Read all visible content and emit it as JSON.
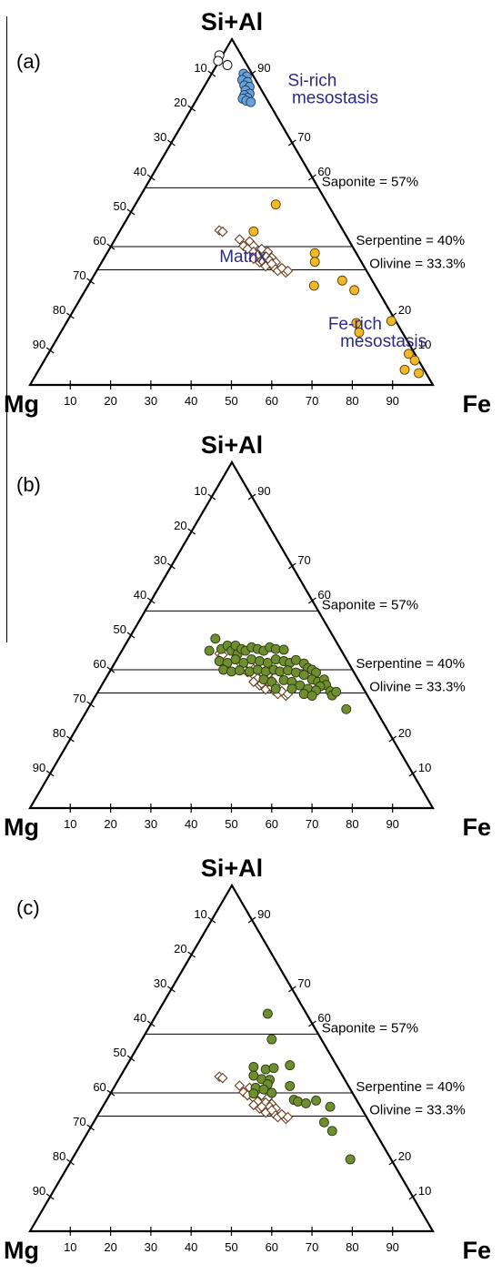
{
  "chart_data": [
    {
      "type": "scatter",
      "panel_label": "(a)",
      "vertex_labels": {
        "top": "Si+Al",
        "left": "Mg",
        "right": "Fe"
      },
      "bottom_ticks": [
        "10",
        "20",
        "30",
        "40",
        "50",
        "60",
        "70",
        "80",
        "90"
      ],
      "left_ticks": [
        "10",
        "20",
        "30",
        "40",
        "50",
        "60",
        "70",
        "80",
        "90"
      ],
      "right_ticks": [
        {
          "f": 0.1,
          "label": "90"
        },
        {
          "f": 0.3,
          "label": "70"
        },
        {
          "f": 0.4,
          "label": "60"
        },
        {
          "f": 0.8,
          "label": "20"
        },
        {
          "f": 0.9,
          "label": "10"
        }
      ],
      "reference_lines": [
        {
          "label": "Saponite = 57%",
          "si_al": 0.57
        },
        {
          "label": "Serpentine = 40%",
          "si_al": 0.4
        },
        {
          "label": "Olivine = 33.3%",
          "si_al": 0.333
        }
      ],
      "annotations": [
        {
          "text": "Si-rich",
          "color": "#2b2a8c",
          "h": 0.64,
          "v": 0.865
        },
        {
          "text": "mesostasis",
          "color": "#2b2a8c",
          "h": 0.65,
          "v": 0.815
        },
        {
          "text": "Matrix",
          "color": "#2b2a8c",
          "h": 0.47,
          "v": 0.355
        },
        {
          "text": "Fe-rich",
          "color": "#2b2a8c",
          "h": 0.74,
          "v": 0.16
        },
        {
          "text": "mesostasis",
          "color": "#2b2a8c",
          "h": 0.77,
          "v": 0.11
        }
      ],
      "series": [
        {
          "marker": "circle",
          "fill": "#ffffff",
          "stroke": "#000000",
          "points": [
            [
              0.47,
              0.953
            ],
            [
              0.467,
              0.937
            ],
            [
              0.49,
              0.925
            ]
          ]
        },
        {
          "marker": "circle",
          "fill": "#6aa2d8",
          "stroke": "#1f3e66",
          "points": [
            [
              0.53,
              0.9
            ],
            [
              0.538,
              0.892
            ],
            [
              0.527,
              0.882
            ],
            [
              0.54,
              0.876
            ],
            [
              0.532,
              0.866
            ],
            [
              0.545,
              0.862
            ],
            [
              0.535,
              0.852
            ],
            [
              0.545,
              0.842
            ],
            [
              0.532,
              0.838
            ],
            [
              0.54,
              0.83
            ],
            [
              0.528,
              0.828
            ],
            [
              0.537,
              0.822
            ],
            [
              0.548,
              0.818
            ]
          ]
        },
        {
          "marker": "circle",
          "fill": "#f2b827",
          "stroke": "#5a4008",
          "points": [
            [
              0.61,
              0.522
            ],
            [
              0.555,
              0.444
            ],
            [
              0.707,
              0.381
            ],
            [
              0.707,
              0.356
            ],
            [
              0.705,
              0.287
            ],
            [
              0.775,
              0.302
            ],
            [
              0.805,
              0.274
            ],
            [
              0.81,
              0.179
            ],
            [
              0.817,
              0.152
            ],
            [
              0.897,
              0.185
            ],
            [
              0.94,
              0.09
            ],
            [
              0.955,
              0.071
            ],
            [
              0.93,
              0.044
            ],
            [
              0.965,
              0.034
            ]
          ]
        },
        {
          "marker": "diamond",
          "fill": "#ffffff",
          "stroke": "#6b3d1e",
          "points": [
            [
              0.47,
              0.447
            ],
            [
              0.478,
              0.443
            ],
            [
              0.52,
              0.421
            ],
            [
              0.545,
              0.415
            ],
            [
              0.555,
              0.402
            ],
            [
              0.53,
              0.402
            ],
            [
              0.54,
              0.393
            ],
            [
              0.575,
              0.393
            ],
            [
              0.555,
              0.385
            ],
            [
              0.59,
              0.385
            ],
            [
              0.565,
              0.375
            ],
            [
              0.585,
              0.372
            ],
            [
              0.6,
              0.368
            ],
            [
              0.595,
              0.36
            ],
            [
              0.61,
              0.355
            ],
            [
              0.57,
              0.355
            ],
            [
              0.585,
              0.343
            ],
            [
              0.605,
              0.34
            ],
            [
              0.615,
              0.33
            ],
            [
              0.635,
              0.325
            ],
            [
              0.555,
              0.365
            ],
            [
              0.6,
              0.35
            ],
            [
              0.625,
              0.338
            ],
            [
              0.64,
              0.33
            ],
            [
              0.575,
              0.36
            ]
          ]
        }
      ]
    },
    {
      "type": "scatter",
      "panel_label": "(b)",
      "vertex_labels": {
        "top": "Si+Al",
        "left": "Mg",
        "right": "Fe"
      },
      "bottom_ticks": [
        "10",
        "20",
        "30",
        "40",
        "50",
        "60",
        "70",
        "80",
        "90"
      ],
      "left_ticks": [
        "10",
        "20",
        "30",
        "40",
        "50",
        "60",
        "70",
        "80",
        "90"
      ],
      "right_ticks": [
        {
          "f": 0.1,
          "label": "90"
        },
        {
          "f": 0.3,
          "label": "70"
        },
        {
          "f": 0.4,
          "label": "60"
        },
        {
          "f": 0.8,
          "label": "20"
        },
        {
          "f": 0.9,
          "label": "10"
        }
      ],
      "reference_lines": [
        {
          "label": "Saponite = 57%",
          "si_al": 0.57
        },
        {
          "label": "Serpentine = 40%",
          "si_al": 0.4
        },
        {
          "label": "Olivine = 33.3%",
          "si_al": 0.333
        }
      ],
      "annotations": [],
      "series": [
        {
          "marker": "diamond",
          "fill": "#ffffff",
          "stroke": "#6b3d1e",
          "points": [
            [
              0.47,
              0.447
            ],
            [
              0.478,
              0.443
            ],
            [
              0.52,
              0.421
            ],
            [
              0.545,
              0.415
            ],
            [
              0.555,
              0.402
            ],
            [
              0.53,
              0.402
            ],
            [
              0.54,
              0.393
            ],
            [
              0.575,
              0.393
            ],
            [
              0.555,
              0.385
            ],
            [
              0.59,
              0.385
            ],
            [
              0.565,
              0.375
            ],
            [
              0.585,
              0.372
            ],
            [
              0.6,
              0.368
            ],
            [
              0.595,
              0.36
            ],
            [
              0.61,
              0.355
            ],
            [
              0.57,
              0.355
            ],
            [
              0.585,
              0.343
            ],
            [
              0.605,
              0.34
            ],
            [
              0.615,
              0.33
            ],
            [
              0.635,
              0.325
            ],
            [
              0.555,
              0.365
            ],
            [
              0.6,
              0.35
            ],
            [
              0.625,
              0.338
            ],
            [
              0.64,
              0.33
            ],
            [
              0.575,
              0.36
            ]
          ]
        },
        {
          "marker": "circle",
          "fill": "#6e8e2f",
          "stroke": "#2c3a0e",
          "points": [
            [
              0.46,
              0.49
            ],
            [
              0.445,
              0.455
            ],
            [
              0.475,
              0.46
            ],
            [
              0.49,
              0.47
            ],
            [
              0.5,
              0.455
            ],
            [
              0.51,
              0.47
            ],
            [
              0.515,
              0.445
            ],
            [
              0.525,
              0.46
            ],
            [
              0.535,
              0.455
            ],
            [
              0.55,
              0.465
            ],
            [
              0.565,
              0.46
            ],
            [
              0.58,
              0.455
            ],
            [
              0.595,
              0.465
            ],
            [
              0.61,
              0.46
            ],
            [
              0.63,
              0.458
            ],
            [
              0.47,
              0.425
            ],
            [
              0.49,
              0.42
            ],
            [
              0.51,
              0.43
            ],
            [
              0.53,
              0.42
            ],
            [
              0.55,
              0.43
            ],
            [
              0.57,
              0.425
            ],
            [
              0.59,
              0.42
            ],
            [
              0.61,
              0.43
            ],
            [
              0.63,
              0.425
            ],
            [
              0.645,
              0.42
            ],
            [
              0.66,
              0.428
            ],
            [
              0.68,
              0.418
            ],
            [
              0.69,
              0.405
            ],
            [
              0.7,
              0.4
            ],
            [
              0.71,
              0.392
            ],
            [
              0.48,
              0.4
            ],
            [
              0.5,
              0.395
            ],
            [
              0.52,
              0.398
            ],
            [
              0.545,
              0.395
            ],
            [
              0.565,
              0.4
            ],
            [
              0.585,
              0.395
            ],
            [
              0.605,
              0.4
            ],
            [
              0.62,
              0.395
            ],
            [
              0.64,
              0.398
            ],
            [
              0.66,
              0.392
            ],
            [
              0.68,
              0.385
            ],
            [
              0.7,
              0.372
            ],
            [
              0.715,
              0.365
            ],
            [
              0.73,
              0.372
            ],
            [
              0.735,
              0.356
            ],
            [
              0.72,
              0.352
            ],
            [
              0.58,
              0.372
            ],
            [
              0.6,
              0.365
            ],
            [
              0.63,
              0.37
            ],
            [
              0.65,
              0.365
            ],
            [
              0.67,
              0.355
            ],
            [
              0.69,
              0.345
            ],
            [
              0.71,
              0.34
            ],
            [
              0.745,
              0.338
            ],
            [
              0.75,
              0.326
            ],
            [
              0.65,
              0.345
            ],
            [
              0.61,
              0.345
            ],
            [
              0.68,
              0.33
            ],
            [
              0.7,
              0.325
            ],
            [
              0.76,
              0.336
            ],
            [
              0.785,
              0.286
            ]
          ]
        }
      ]
    },
    {
      "type": "scatter",
      "panel_label": "(c)",
      "vertex_labels": {
        "top": "Si+Al",
        "left": "Mg",
        "right": "Fe"
      },
      "bottom_ticks": [
        "10",
        "20",
        "30",
        "40",
        "50",
        "60",
        "70",
        "80",
        "90"
      ],
      "left_ticks": [
        "10",
        "20",
        "30",
        "40",
        "50",
        "60",
        "70",
        "80",
        "90"
      ],
      "right_ticks": [
        {
          "f": 0.1,
          "label": "90"
        },
        {
          "f": 0.3,
          "label": "70"
        },
        {
          "f": 0.4,
          "label": "60"
        },
        {
          "f": 0.8,
          "label": "20"
        },
        {
          "f": 0.9,
          "label": "10"
        }
      ],
      "reference_lines": [
        {
          "label": "Saponite = 57%",
          "si_al": 0.57
        },
        {
          "label": "Serpentine = 40%",
          "si_al": 0.4
        },
        {
          "label": "Olivine = 33.3%",
          "si_al": 0.333
        }
      ],
      "annotations": [],
      "series": [
        {
          "marker": "diamond",
          "fill": "#ffffff",
          "stroke": "#6b3d1e",
          "points": [
            [
              0.47,
              0.447
            ],
            [
              0.478,
              0.443
            ],
            [
              0.52,
              0.421
            ],
            [
              0.545,
              0.415
            ],
            [
              0.555,
              0.402
            ],
            [
              0.53,
              0.402
            ],
            [
              0.54,
              0.393
            ],
            [
              0.575,
              0.393
            ],
            [
              0.555,
              0.385
            ],
            [
              0.59,
              0.385
            ],
            [
              0.565,
              0.375
            ],
            [
              0.585,
              0.372
            ],
            [
              0.6,
              0.368
            ],
            [
              0.595,
              0.36
            ],
            [
              0.61,
              0.355
            ],
            [
              0.57,
              0.355
            ],
            [
              0.585,
              0.343
            ],
            [
              0.605,
              0.34
            ],
            [
              0.615,
              0.33
            ],
            [
              0.635,
              0.325
            ],
            [
              0.555,
              0.365
            ],
            [
              0.6,
              0.35
            ],
            [
              0.625,
              0.338
            ],
            [
              0.64,
              0.33
            ],
            [
              0.575,
              0.36
            ]
          ]
        },
        {
          "marker": "circle",
          "fill": "#6e8e2f",
          "stroke": "#2c3a0e",
          "points": [
            [
              0.59,
              0.629
            ],
            [
              0.6,
              0.555
            ],
            [
              0.645,
              0.48
            ],
            [
              0.555,
              0.475
            ],
            [
              0.585,
              0.468
            ],
            [
              0.605,
              0.472
            ],
            [
              0.555,
              0.45
            ],
            [
              0.575,
              0.44
            ],
            [
              0.595,
              0.438
            ],
            [
              0.59,
              0.425
            ],
            [
              0.56,
              0.415
            ],
            [
              0.58,
              0.41
            ],
            [
              0.555,
              0.398
            ],
            [
              0.6,
              0.4
            ],
            [
              0.645,
              0.42
            ],
            [
              0.655,
              0.38
            ],
            [
              0.665,
              0.375
            ],
            [
              0.685,
              0.37
            ],
            [
              0.71,
              0.378
            ],
            [
              0.745,
              0.36
            ],
            [
              0.73,
              0.315
            ],
            [
              0.75,
              0.29
            ],
            [
              0.795,
              0.208
            ]
          ]
        }
      ]
    }
  ]
}
